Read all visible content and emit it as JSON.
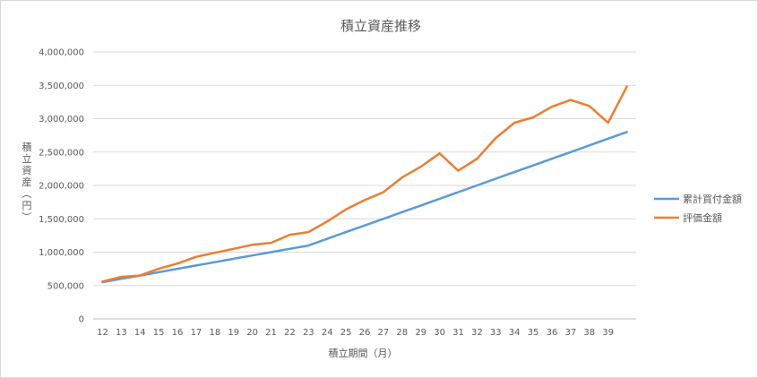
{
  "chart_data": {
    "type": "line",
    "title": "積立資産推移",
    "xlabel": "積立期間（月）",
    "ylabel": "積立資産（円）",
    "ylim": [
      0,
      4000000
    ],
    "yticks": [
      0,
      500000,
      1000000,
      1500000,
      2000000,
      2500000,
      3000000,
      3500000,
      4000000
    ],
    "ytick_labels": [
      "0",
      "500,000",
      "1,000,000",
      "1,500,000",
      "2,000,000",
      "2,500,000",
      "3,000,000",
      "3,500,000",
      "4,000,000"
    ],
    "categories": [
      "12",
      "13",
      "14",
      "15",
      "16",
      "17",
      "18",
      "19",
      "20",
      "21",
      "22",
      "23",
      "24",
      "25",
      "26",
      "27",
      "28",
      "29",
      "30",
      "31",
      "32",
      "33",
      "34",
      "35",
      "36",
      "37",
      "38",
      "39",
      ""
    ],
    "grid": true,
    "legend_position": "right",
    "series": [
      {
        "name": "累計買付金額",
        "color": "#5b9bd5",
        "values": [
          550000,
          600000,
          650000,
          700000,
          750000,
          800000,
          850000,
          900000,
          950000,
          1000000,
          1050000,
          1100000,
          1200000,
          1300000,
          1400000,
          1500000,
          1600000,
          1700000,
          1800000,
          1900000,
          2000000,
          2100000,
          2200000,
          2300000,
          2400000,
          2500000,
          2600000,
          2700000,
          2800000
        ]
      },
      {
        "name": "評価金額",
        "color": "#ed7d31",
        "values": [
          560000,
          630000,
          650000,
          750000,
          830000,
          930000,
          990000,
          1050000,
          1110000,
          1140000,
          1260000,
          1300000,
          1460000,
          1640000,
          1780000,
          1900000,
          2120000,
          2280000,
          2480000,
          2220000,
          2400000,
          2710000,
          2940000,
          3020000,
          3180000,
          3280000,
          3190000,
          2940000,
          3480000
        ]
      }
    ]
  }
}
